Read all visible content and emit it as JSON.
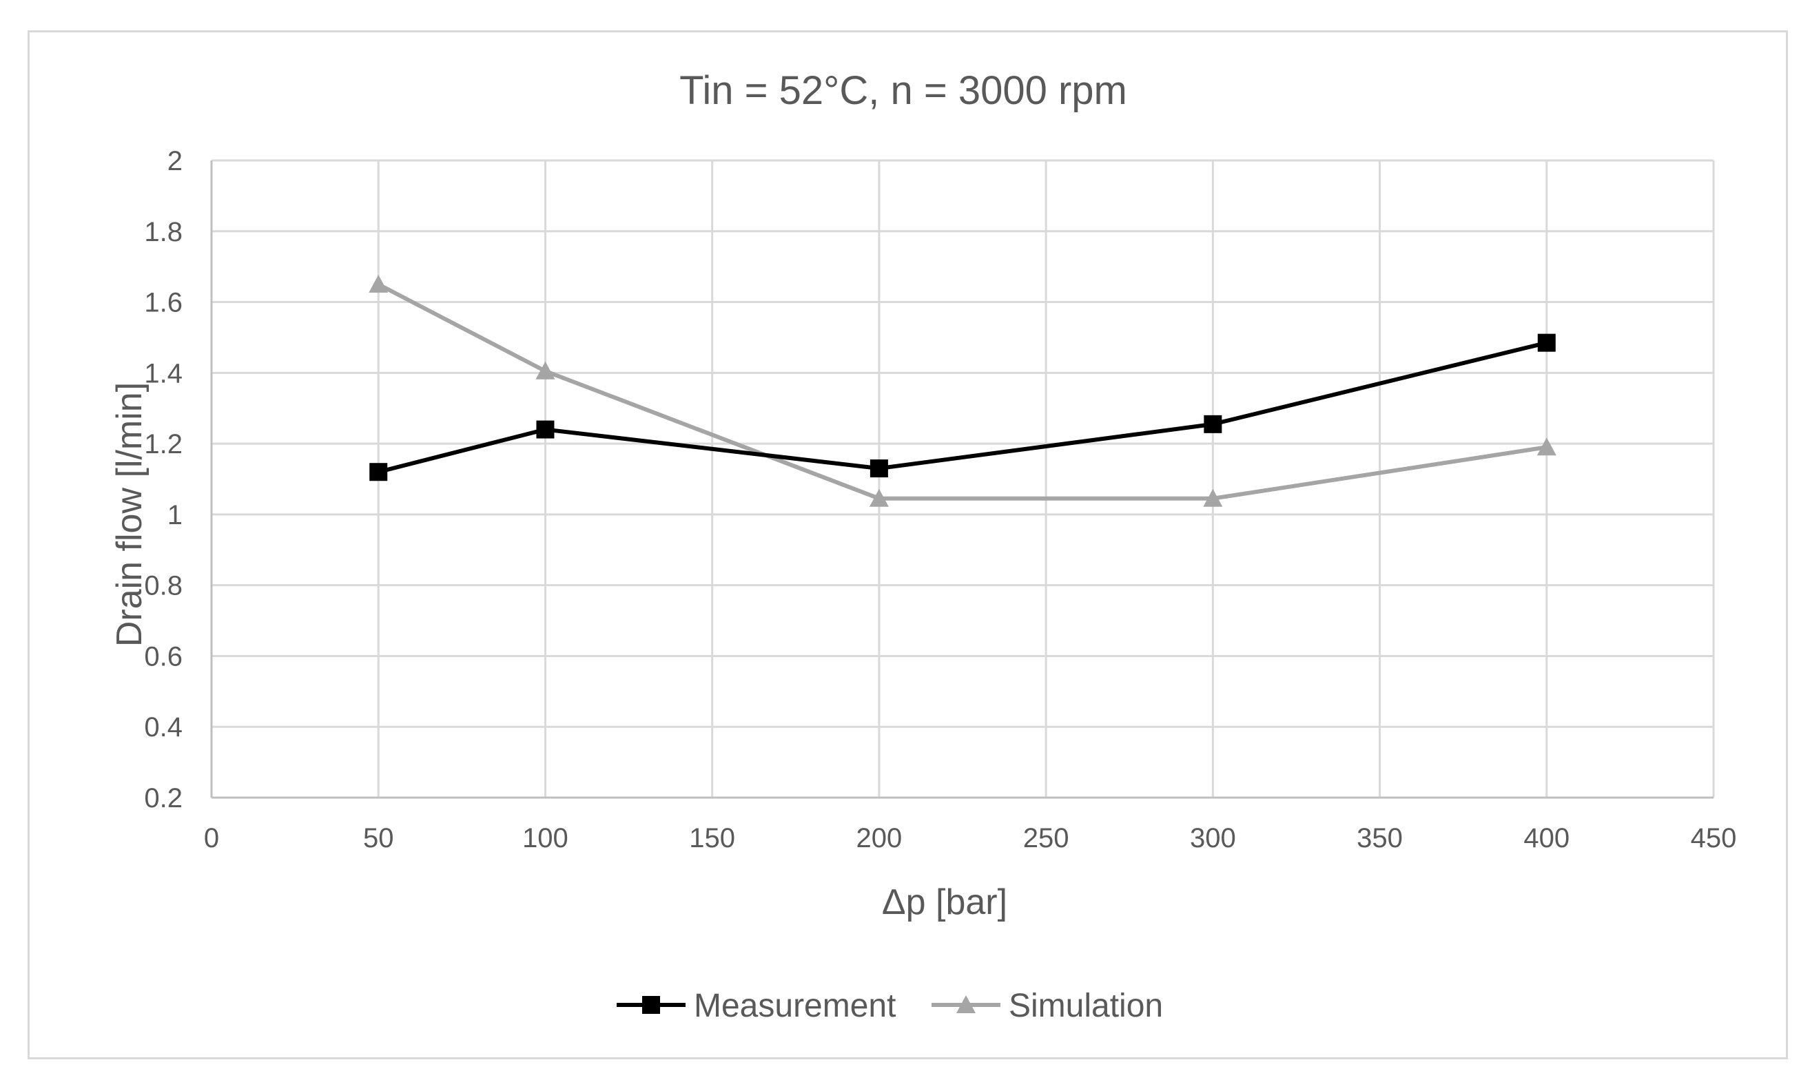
{
  "chart_data": {
    "type": "line",
    "title": "Tin = 52°C, n = 3000 rpm",
    "xlabel": "Δp [bar]",
    "ylabel": "Drain flow [l/min]",
    "xlim": [
      0,
      450
    ],
    "ylim": [
      0.2,
      2
    ],
    "x_ticks": [
      0,
      50,
      100,
      150,
      200,
      250,
      300,
      350,
      400,
      450
    ],
    "y_ticks": [
      0.2,
      0.4,
      0.6,
      0.8,
      1,
      1.2,
      1.4,
      1.6,
      1.8,
      2
    ],
    "x_tick_labels": [
      "0",
      "50",
      "100",
      "150",
      "200",
      "250",
      "300",
      "350",
      "400",
      "450"
    ],
    "y_tick_labels": [
      "0.2",
      "0.4",
      "0.6",
      "0.8",
      "1",
      "1.2",
      "1.4",
      "1.6",
      "1.8",
      "2"
    ],
    "grid": true,
    "legend_position": "bottom",
    "series": [
      {
        "name": "Measurement",
        "color": "#000000",
        "marker": "square",
        "x": [
          50,
          100,
          200,
          300,
          400
        ],
        "y": [
          1.12,
          1.24,
          1.13,
          1.255,
          1.485
        ]
      },
      {
        "name": "Simulation",
        "color": "#a5a5a5",
        "marker": "triangle",
        "x": [
          50,
          100,
          200,
          300,
          400
        ],
        "y": [
          1.65,
          1.405,
          1.045,
          1.045,
          1.19
        ]
      }
    ]
  }
}
